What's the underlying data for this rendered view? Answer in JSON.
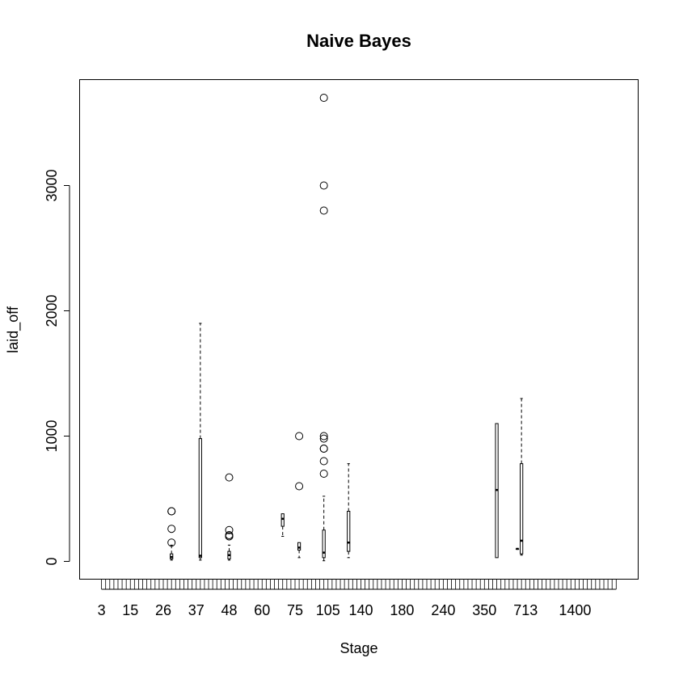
{
  "chart_data": {
    "type": "boxplot",
    "title": "Naive Bayes",
    "xlabel": "Stage",
    "ylabel": "laid_off",
    "ylim": [
      -150,
      3850
    ],
    "y_ticks": [
      0,
      1000,
      2000,
      3000
    ],
    "x_tick_labels": [
      "3",
      "15",
      "26",
      "37",
      "48",
      "60",
      "75",
      "105",
      "140",
      "180",
      "240",
      "350",
      "713",
      "1400"
    ],
    "category_count": 126,
    "boxes": [
      {
        "category_index": 18,
        "min": 10,
        "q1": 20,
        "median": 35,
        "q3": 60,
        "max": 130,
        "outliers": [
          150,
          260,
          400,
          400
        ]
      },
      {
        "category_index": 25,
        "min": 10,
        "q1": 30,
        "median": 45,
        "q3": 980,
        "max": 1900,
        "outliers": []
      },
      {
        "category_index": 32,
        "min": 10,
        "q1": 20,
        "median": 50,
        "q3": 80,
        "max": 130,
        "outliers": [
          200,
          200,
          210,
          250,
          670
        ]
      },
      {
        "category_index": 45,
        "min": 200,
        "q1": 280,
        "median": 340,
        "q3": 380,
        "max": 380,
        "outliers": []
      },
      {
        "category_index": 49,
        "min": 30,
        "q1": 90,
        "median": 110,
        "q3": 150,
        "max": 150,
        "outliers": [
          600,
          1000
        ]
      },
      {
        "category_index": 55,
        "min": 5,
        "q1": 30,
        "median": 70,
        "q3": 250,
        "max": 520,
        "outliers": [
          700,
          800,
          900,
          900,
          980,
          1000,
          2800,
          3000,
          3700
        ]
      },
      {
        "category_index": 61,
        "min": 30,
        "q1": 80,
        "median": 150,
        "q3": 400,
        "max": 780,
        "outliers": []
      },
      {
        "category_index": 97,
        "min": 30,
        "q1": 30,
        "median": 570,
        "q3": 1100,
        "max": 1100,
        "outliers": []
      },
      {
        "category_index": 102,
        "min": 100,
        "q1": 100,
        "median": 100,
        "q3": 100,
        "max": 100,
        "outliers": []
      },
      {
        "category_index": 103,
        "min": 50,
        "q1": 60,
        "median": 165,
        "q3": 780,
        "max": 1300,
        "outliers": []
      }
    ]
  }
}
